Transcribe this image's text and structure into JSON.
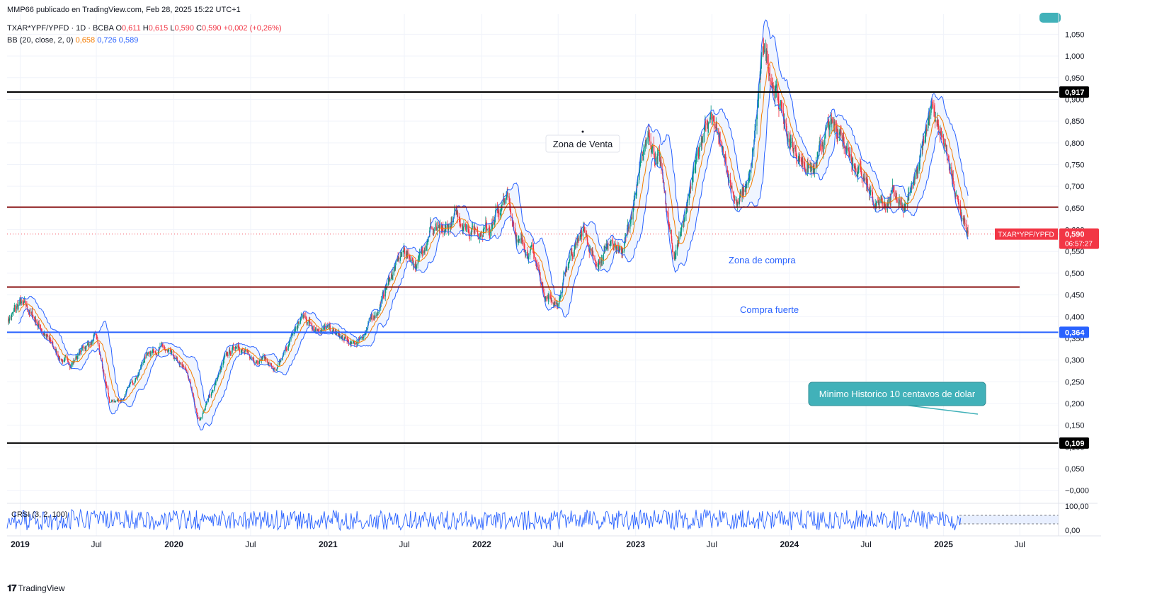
{
  "header": {
    "published": "MMP66 publicado en TradingView.com, Feb 28, 2025 15:22 UTC+1",
    "symbol": "TXAR*YPF/YPFD · 1D · BCBA",
    "ohlc": {
      "o_label": "O",
      "o": "0,611",
      "h_label": "H",
      "h": "0,615",
      "l_label": "L",
      "l": "0,590",
      "c_label": "C",
      "c": "0,590",
      "change": "+0,002 (+0,26%)"
    },
    "bb": {
      "label": "BB (20, close, 2, 0)",
      "basis": "0,658",
      "upper": "0,726",
      "lower": "0,589"
    }
  },
  "footer": {
    "brand": "TradingView"
  },
  "colors": {
    "up": "#089981",
    "down": "#f23645",
    "bb_band": "#2962ff",
    "bb_basis": "#f57c00",
    "fill": "#e3ecff",
    "level_black": "#000000",
    "level_darkred": "#880e0e",
    "level_blue": "#2962ff",
    "callout": "#41b1b9"
  },
  "chart_data": {
    "type": "candlestick",
    "y_axis": {
      "min": -0.02,
      "max": 1.08,
      "ticks": [
        "1,050",
        "1,000",
        "0,950",
        "0,900",
        "0,850",
        "0,800",
        "0,750",
        "0,700",
        "0,650",
        "0,600",
        "0,550",
        "0,500",
        "0,450",
        "0,400",
        "0,350",
        "0,300",
        "0,250",
        "0,200",
        "0,150",
        "0,100",
        "0,050",
        "−0,000"
      ]
    },
    "x_axis": {
      "labels": [
        "2019",
        "Jul",
        "2020",
        "Jul",
        "2021",
        "Jul",
        "2022",
        "Jul",
        "2023",
        "Jul",
        "2024",
        "Jul",
        "2025",
        "Jul"
      ],
      "range": [
        "2018-12",
        "2025-10"
      ]
    },
    "price_trend": [
      [
        "2018-12",
        0.39
      ],
      [
        "2019-01",
        0.43
      ],
      [
        "2019-02",
        0.4
      ],
      [
        "2019-03",
        0.36
      ],
      [
        "2019-04",
        0.31
      ],
      [
        "2019-05",
        0.29
      ],
      [
        "2019-06",
        0.33
      ],
      [
        "2019-07",
        0.35
      ],
      [
        "2019-08",
        0.2
      ],
      [
        "2019-09",
        0.21
      ],
      [
        "2019-10",
        0.26
      ],
      [
        "2019-11",
        0.32
      ],
      [
        "2019-12",
        0.33
      ],
      [
        "2020-01",
        0.3
      ],
      [
        "2020-02",
        0.27
      ],
      [
        "2020-03",
        0.16
      ],
      [
        "2020-04",
        0.23
      ],
      [
        "2020-05",
        0.3
      ],
      [
        "2020-06",
        0.34
      ],
      [
        "2020-07",
        0.3
      ],
      [
        "2020-08",
        0.31
      ],
      [
        "2020-09",
        0.27
      ],
      [
        "2020-10",
        0.34
      ],
      [
        "2020-11",
        0.4
      ],
      [
        "2020-12",
        0.38
      ],
      [
        "2021-01",
        0.37
      ],
      [
        "2021-02",
        0.35
      ],
      [
        "2021-03",
        0.33
      ],
      [
        "2021-04",
        0.37
      ],
      [
        "2021-05",
        0.42
      ],
      [
        "2021-06",
        0.5
      ],
      [
        "2021-07",
        0.55
      ],
      [
        "2021-08",
        0.52
      ],
      [
        "2021-09",
        0.61
      ],
      [
        "2021-10",
        0.58
      ],
      [
        "2021-11",
        0.63
      ],
      [
        "2021-12",
        0.61
      ],
      [
        "2022-01",
        0.6
      ],
      [
        "2022-02",
        0.63
      ],
      [
        "2022-03",
        0.67
      ],
      [
        "2022-04",
        0.57
      ],
      [
        "2022-05",
        0.55
      ],
      [
        "2022-06",
        0.45
      ],
      [
        "2022-07",
        0.43
      ],
      [
        "2022-08",
        0.55
      ],
      [
        "2022-09",
        0.6
      ],
      [
        "2022-10",
        0.5
      ],
      [
        "2022-11",
        0.58
      ],
      [
        "2022-12",
        0.55
      ],
      [
        "2023-01",
        0.67
      ],
      [
        "2023-02",
        0.83
      ],
      [
        "2023-03",
        0.74
      ],
      [
        "2023-04",
        0.53
      ],
      [
        "2023-05",
        0.65
      ],
      [
        "2023-06",
        0.8
      ],
      [
        "2023-07",
        0.85
      ],
      [
        "2023-08",
        0.75
      ],
      [
        "2023-09",
        0.66
      ],
      [
        "2023-10",
        0.72
      ],
      [
        "2023-11",
        1.02
      ],
      [
        "2023-12",
        0.92
      ],
      [
        "2024-01",
        0.8
      ],
      [
        "2024-02",
        0.76
      ],
      [
        "2024-03",
        0.73
      ],
      [
        "2024-04",
        0.83
      ],
      [
        "2024-05",
        0.83
      ],
      [
        "2024-06",
        0.77
      ],
      [
        "2024-07",
        0.72
      ],
      [
        "2024-08",
        0.64
      ],
      [
        "2024-09",
        0.69
      ],
      [
        "2024-10",
        0.66
      ],
      [
        "2024-11",
        0.72
      ],
      [
        "2024-12",
        0.9
      ],
      [
        "2025-01",
        0.8
      ],
      [
        "2025-02",
        0.66
      ],
      [
        "2025-02-28",
        0.59
      ]
    ],
    "last_price": {
      "value": "0,590",
      "label": "TXAR*YPF/YPFD",
      "countdown": "06:57:27"
    },
    "levels": [
      {
        "value": 0.917,
        "label": "0,917",
        "kind": "black"
      },
      {
        "value": 0.652,
        "label": "",
        "kind": "darkred"
      },
      {
        "value": 0.468,
        "label": "",
        "kind": "darkred"
      },
      {
        "value": 0.364,
        "label": "0,364",
        "kind": "blue"
      },
      {
        "value": 0.109,
        "label": "0,109",
        "kind": "black"
      }
    ],
    "annotations": {
      "venta": "Zona de Venta",
      "compra": "Zona de compra",
      "fuerte": "Compra fuerte",
      "minimo": "Minimo Historico 10 centavos de dolar"
    },
    "oscillator": {
      "label": "CRSI (3, 2, 100)",
      "ticks": [
        "100,00",
        "0,00"
      ]
    }
  }
}
